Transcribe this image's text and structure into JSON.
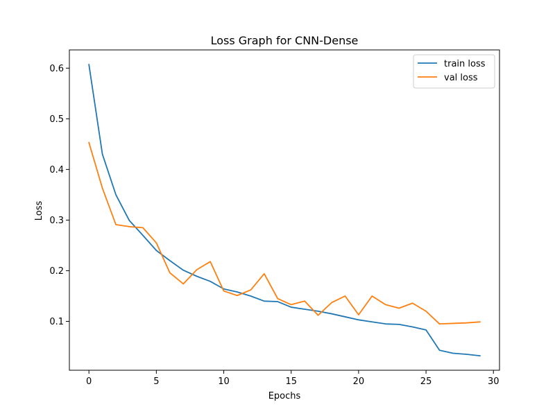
{
  "chart_data": {
    "type": "line",
    "title": "Loss Graph for CNN-Dense",
    "xlabel": "Epochs",
    "ylabel": "Loss",
    "xlim": [
      -1.45,
      30.45
    ],
    "ylim": [
      0.0035,
      0.636
    ],
    "xticks": [
      0,
      5,
      10,
      15,
      20,
      25,
      30
    ],
    "yticks": [
      0.1,
      0.2,
      0.3,
      0.4,
      0.5,
      0.6
    ],
    "xtick_labels": [
      "0",
      "5",
      "10",
      "15",
      "20",
      "25",
      "30"
    ],
    "ytick_labels": [
      "0.1",
      "0.2",
      "0.3",
      "0.4",
      "0.5",
      "0.6"
    ],
    "grid": false,
    "legend_position": "top-right",
    "x": [
      0,
      1,
      2,
      3,
      4,
      5,
      6,
      7,
      8,
      9,
      10,
      11,
      12,
      13,
      14,
      15,
      16,
      17,
      18,
      19,
      20,
      21,
      22,
      23,
      24,
      25,
      26,
      27,
      28,
      29
    ],
    "series": [
      {
        "name": "train loss",
        "color": "#1f77b4",
        "values": [
          0.607,
          0.43,
          0.35,
          0.299,
          0.27,
          0.24,
          0.22,
          0.201,
          0.189,
          0.179,
          0.164,
          0.158,
          0.15,
          0.14,
          0.139,
          0.128,
          0.124,
          0.12,
          0.115,
          0.109,
          0.103,
          0.099,
          0.095,
          0.094,
          0.089,
          0.083,
          0.043,
          0.037,
          0.035,
          0.032
        ]
      },
      {
        "name": "val loss",
        "color": "#ff7f0e",
        "values": [
          0.453,
          0.363,
          0.291,
          0.287,
          0.285,
          0.255,
          0.196,
          0.174,
          0.202,
          0.218,
          0.16,
          0.151,
          0.162,
          0.194,
          0.145,
          0.133,
          0.14,
          0.112,
          0.137,
          0.15,
          0.113,
          0.15,
          0.133,
          0.126,
          0.136,
          0.12,
          0.095,
          0.096,
          0.097,
          0.099
        ]
      }
    ]
  }
}
